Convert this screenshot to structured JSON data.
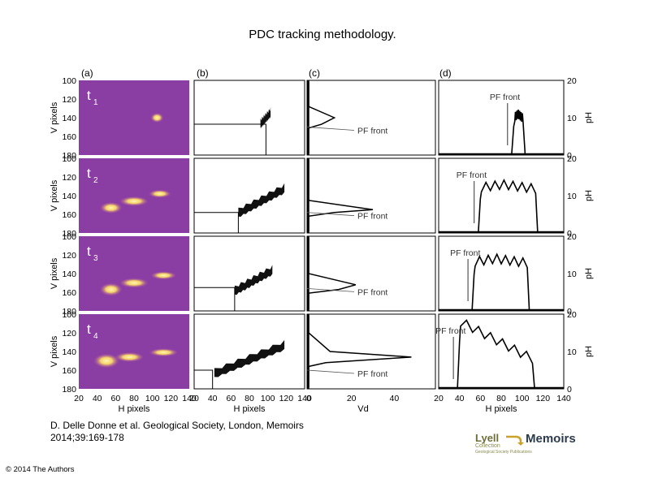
{
  "title": "PDC tracking methodology.",
  "citation_line1": "D. Delle Donne et al. Geological Society, London, Memoirs",
  "citation_line2": "2014;39:169-178",
  "copyright": "© 2014 The Authors",
  "logo": {
    "lyell": "Lyell",
    "collection": "Collection",
    "tagline": "Geological Society Publications",
    "memoirs": "Memoirs"
  },
  "panels": {
    "a": "(a)",
    "b": "(b)",
    "c": "(c)",
    "d": "(d)"
  },
  "time_labels": [
    "t",
    "t",
    "t",
    "t"
  ],
  "time_subscripts": [
    "1",
    "2",
    "3",
    "4"
  ],
  "axis": {
    "v_label": "V pixels",
    "h_label": "H pixels",
    "vd_label": "Vd",
    "ph_label": "pH",
    "v_ticks": [
      "100",
      "120",
      "140",
      "160",
      "180"
    ],
    "h_ticks": [
      "20",
      "40",
      "60",
      "80",
      "100",
      "120",
      "140"
    ],
    "vd_ticks": [
      "0",
      "20",
      "40"
    ],
    "ph_ticks": [
      "0",
      "10",
      "20"
    ]
  },
  "pf_front": "PF front",
  "colors": {
    "thermal_bg": "#8a3ea3",
    "thermal_hot": "#f5d36a"
  }
}
